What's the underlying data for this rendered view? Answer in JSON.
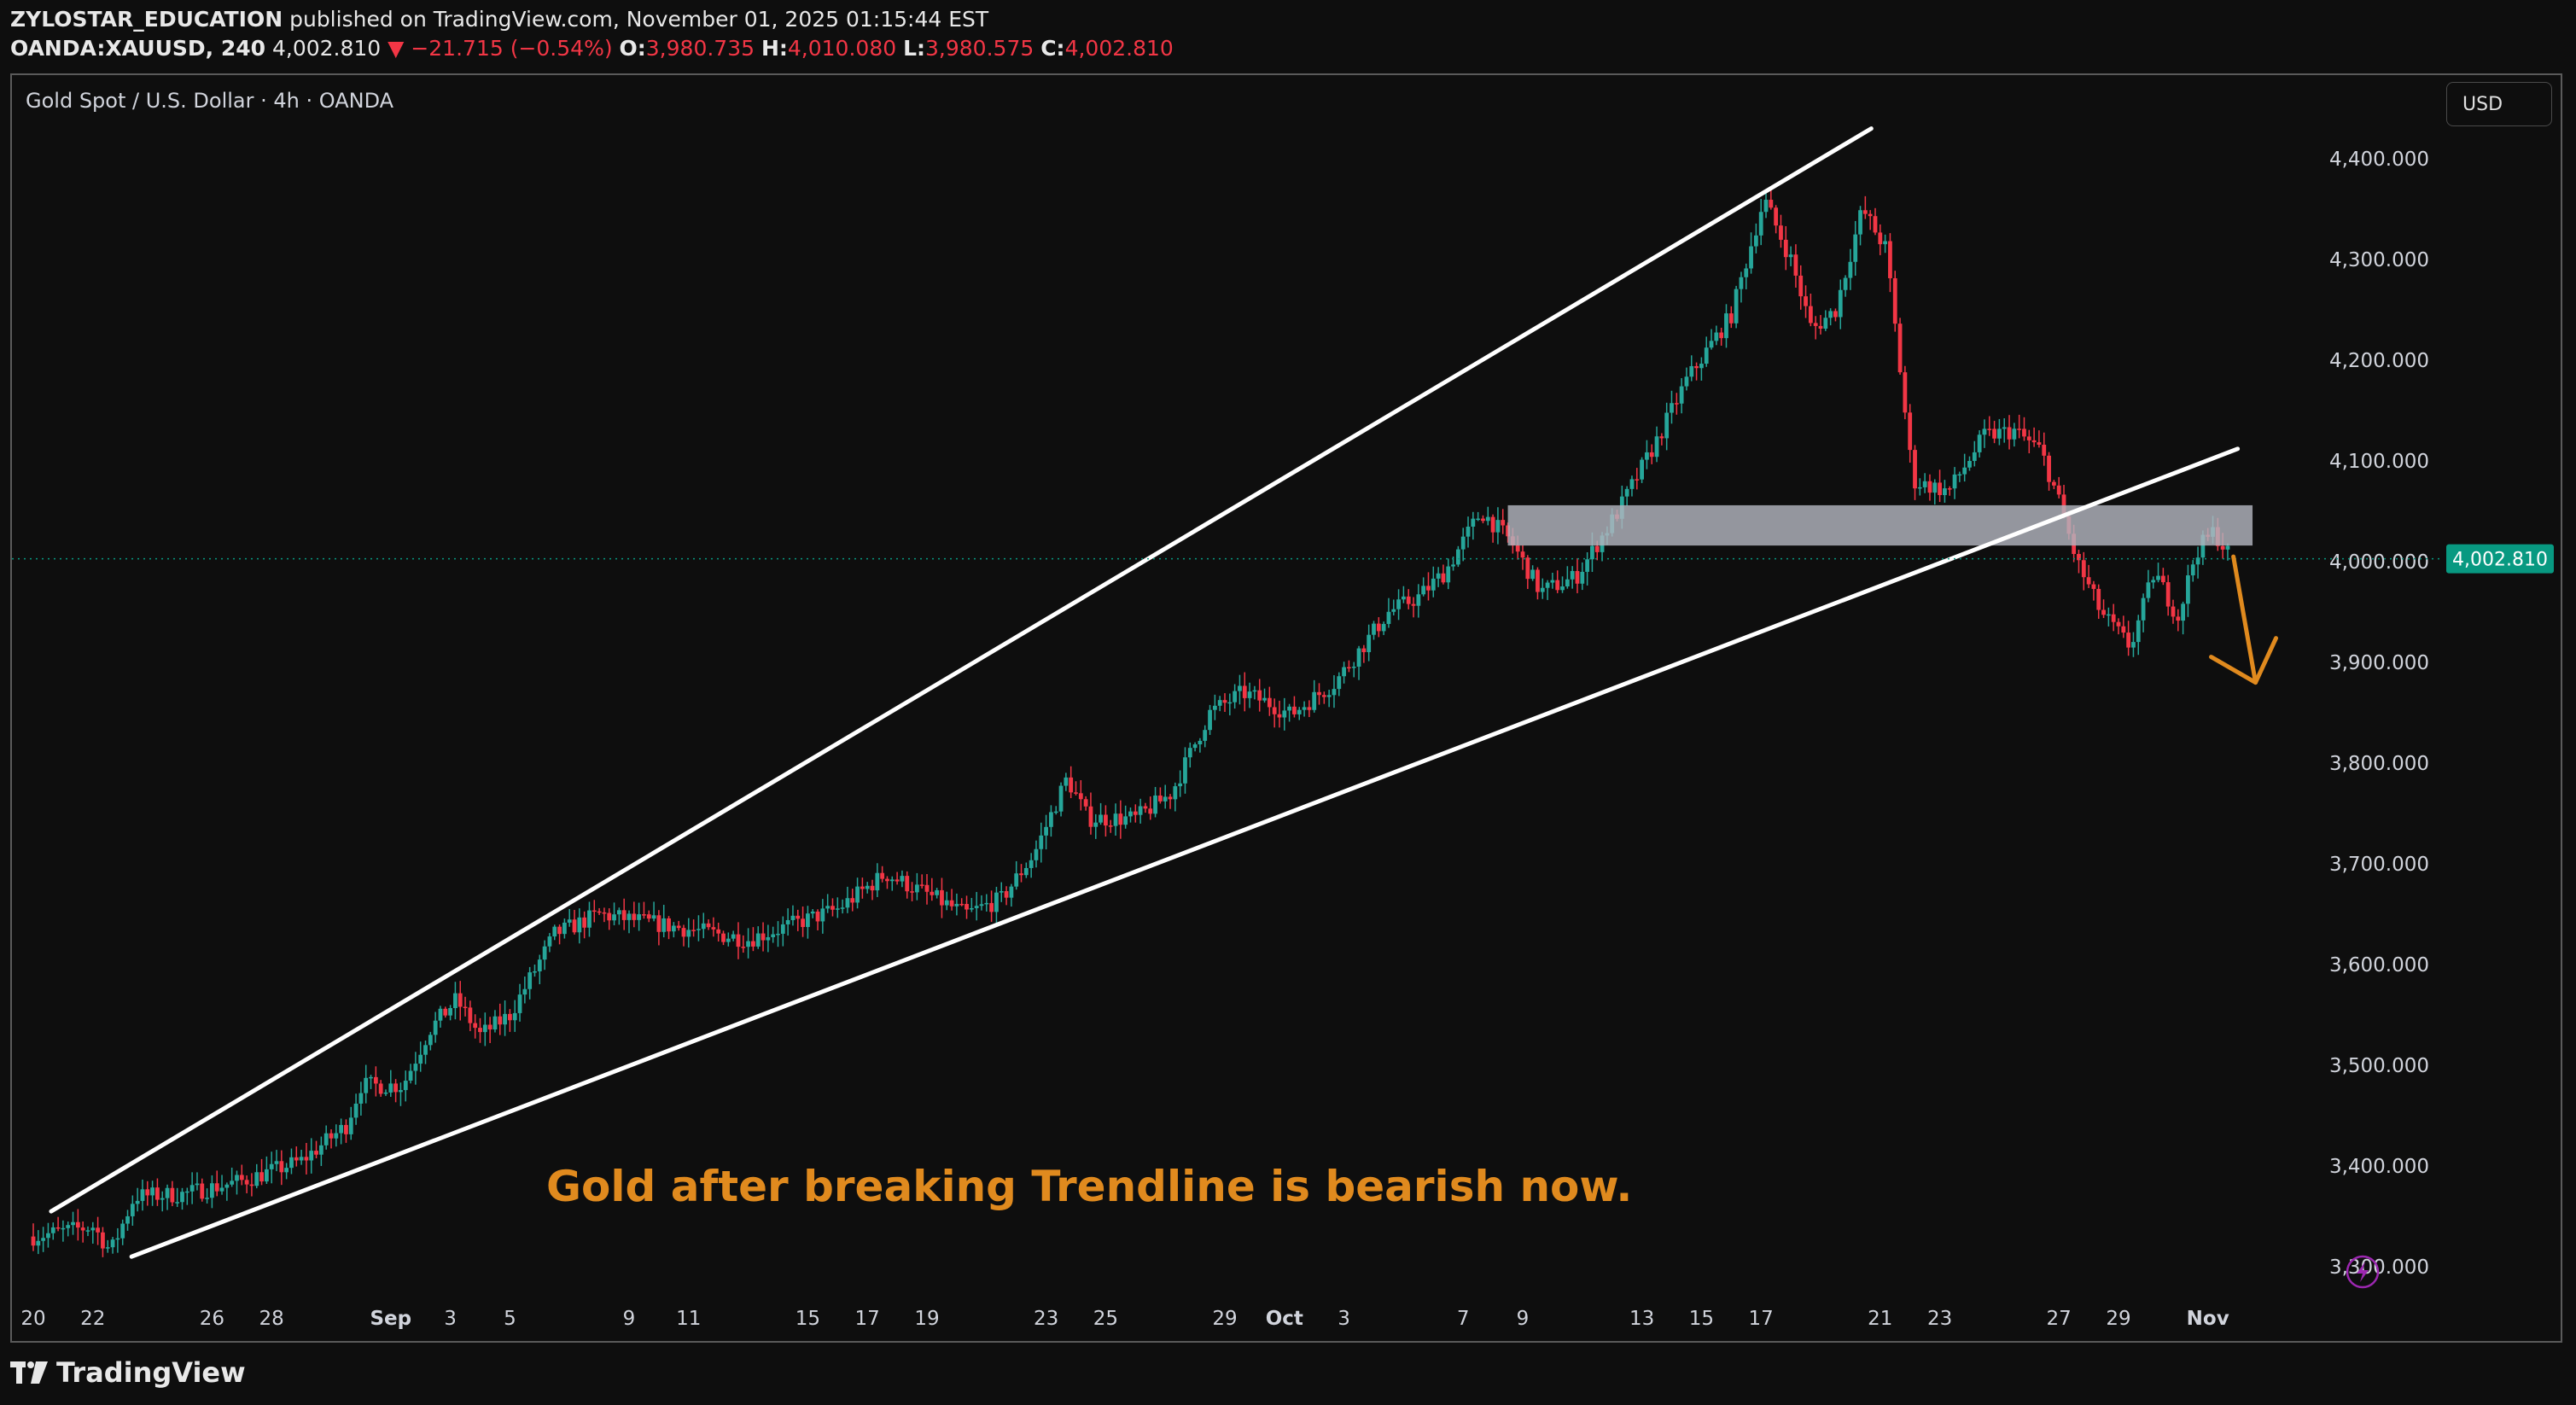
{
  "header": {
    "author": "ZYLOSTAR_EDUCATION",
    "published": " published on TradingView.com, November 01, 2025 01:15:44 EST",
    "symbol": "OANDA:XAUUSD, 240",
    "last": "4,002.810",
    "change": "▼ −21.715 (−0.54%)",
    "o_label": "O:",
    "o_value": "3,980.735",
    "h_label": "H:",
    "h_value": "4,010.080",
    "l_label": "L:",
    "l_value": "3,980.575",
    "c_label": "C:",
    "c_value": "4,002.810"
  },
  "chart_title": "Gold Spot / U.S. Dollar · 4h · OANDA",
  "currency_button": "USD",
  "brand": "TradingView",
  "colors": {
    "up": "#26a69a",
    "down": "#f23645",
    "annotation": "#e08a1e",
    "trendline": "#ffffff",
    "zone": "#b2b5be",
    "price_badge": "#089981",
    "alert_icon": "#9c27b0"
  },
  "chart_data": {
    "type": "candlestick",
    "title": "Gold Spot / U.S. Dollar · 4h · OANDA",
    "symbol": "OANDA:XAUUSD",
    "interval": "4h",
    "currency": "USD",
    "ylim": [
      3270,
      4440
    ],
    "y_ticks": [
      3300,
      3400,
      3500,
      3600,
      3700,
      3800,
      3900,
      4000,
      4100,
      4200,
      4300,
      4400
    ],
    "y_tick_labels": [
      "3,300.000",
      "3,400.000",
      "3,500.000",
      "3,600.000",
      "3,700.000",
      "3,800.000",
      "3,900.000",
      "4,000.000",
      "4,100.000",
      "4,200.000",
      "4,300.000",
      "4,400.000"
    ],
    "x_ticks": [
      {
        "label": "20",
        "day": 0
      },
      {
        "label": "22",
        "day": 2
      },
      {
        "label": "26",
        "day": 6
      },
      {
        "label": "28",
        "day": 8
      },
      {
        "label": "Sep",
        "day": 12
      },
      {
        "label": "3",
        "day": 14
      },
      {
        "label": "5",
        "day": 16
      },
      {
        "label": "9",
        "day": 20
      },
      {
        "label": "11",
        "day": 22
      },
      {
        "label": "15",
        "day": 26
      },
      {
        "label": "17",
        "day": 28
      },
      {
        "label": "19",
        "day": 30
      },
      {
        "label": "23",
        "day": 34
      },
      {
        "label": "25",
        "day": 36
      },
      {
        "label": "29",
        "day": 40
      },
      {
        "label": "Oct",
        "day": 42
      },
      {
        "label": "3",
        "day": 44
      },
      {
        "label": "7",
        "day": 48
      },
      {
        "label": "9",
        "day": 50
      },
      {
        "label": "13",
        "day": 54
      },
      {
        "label": "15",
        "day": 56
      },
      {
        "label": "17",
        "day": 58
      },
      {
        "label": "21",
        "day": 62
      },
      {
        "label": "23",
        "day": 64
      },
      {
        "label": "27",
        "day": 68
      },
      {
        "label": "29",
        "day": 70
      },
      {
        "label": "Nov",
        "day": 73
      }
    ],
    "anchors": [
      [
        0,
        3330
      ],
      [
        2,
        3340
      ],
      [
        2.6,
        3315
      ],
      [
        3.4,
        3370
      ],
      [
        5,
        3372
      ],
      [
        7,
        3385
      ],
      [
        9,
        3405
      ],
      [
        10.5,
        3440
      ],
      [
        11,
        3480
      ],
      [
        12.4,
        3480
      ],
      [
        13.3,
        3535
      ],
      [
        14.2,
        3565
      ],
      [
        15,
        3530
      ],
      [
        16,
        3550
      ],
      [
        17.5,
        3630
      ],
      [
        19,
        3650
      ],
      [
        21,
        3640
      ],
      [
        24,
        3625
      ],
      [
        27,
        3655
      ],
      [
        28.6,
        3690
      ],
      [
        30,
        3670
      ],
      [
        31.3,
        3650
      ],
      [
        32.5,
        3665
      ],
      [
        33.6,
        3710
      ],
      [
        34.7,
        3785
      ],
      [
        35.4,
        3745
      ],
      [
        37,
        3745
      ],
      [
        38.2,
        3770
      ],
      [
        39.5,
        3850
      ],
      [
        40.6,
        3870
      ],
      [
        41.6,
        3858
      ],
      [
        42.2,
        3848
      ],
      [
        43.7,
        3880
      ],
      [
        45.5,
        3950
      ],
      [
        46.5,
        3965
      ],
      [
        47.4,
        3990
      ],
      [
        48.6,
        4050
      ],
      [
        49.6,
        4020
      ],
      [
        50.6,
        3970
      ],
      [
        51.8,
        3985
      ],
      [
        53.2,
        4050
      ],
      [
        54.5,
        4120
      ],
      [
        55.5,
        4180
      ],
      [
        57,
        4245
      ],
      [
        58.1,
        4360
      ],
      [
        59,
        4300
      ],
      [
        59.7,
        4230
      ],
      [
        60.5,
        4250
      ],
      [
        61.4,
        4350
      ],
      [
        62.2,
        4310
      ],
      [
        63.1,
        4080
      ],
      [
        64.3,
        4070
      ],
      [
        65.5,
        4125
      ],
      [
        66.5,
        4130
      ],
      [
        67.4,
        4110
      ],
      [
        68,
        4060
      ],
      [
        68.6,
        4000
      ],
      [
        69.4,
        3950
      ],
      [
        70.4,
        3915
      ],
      [
        71.2,
        3990
      ],
      [
        72,
        3945
      ],
      [
        72.6,
        4010
      ],
      [
        73.2,
        4030
      ],
      [
        73.8,
        4002.81
      ]
    ],
    "last_price": 4002.81,
    "last_price_label": "4,002.810",
    "trendlines": [
      {
        "name": "upper-trendline",
        "from": [
          0.6,
          3355
        ],
        "to": [
          61.7,
          4430
        ]
      },
      {
        "name": "lower-trendline",
        "from": [
          3.3,
          3310
        ],
        "to": [
          74.0,
          4112
        ]
      }
    ],
    "zones": [
      {
        "name": "resistance-zone",
        "from_day": 49.5,
        "to_day": 74.5,
        "low": 4016,
        "high": 4056
      }
    ],
    "projection_arrow": {
      "from": [
        73.8,
        4005
      ],
      "to": [
        74.6,
        3880
      ]
    },
    "annotation": "Gold after breaking Trendline is bearish now."
  }
}
